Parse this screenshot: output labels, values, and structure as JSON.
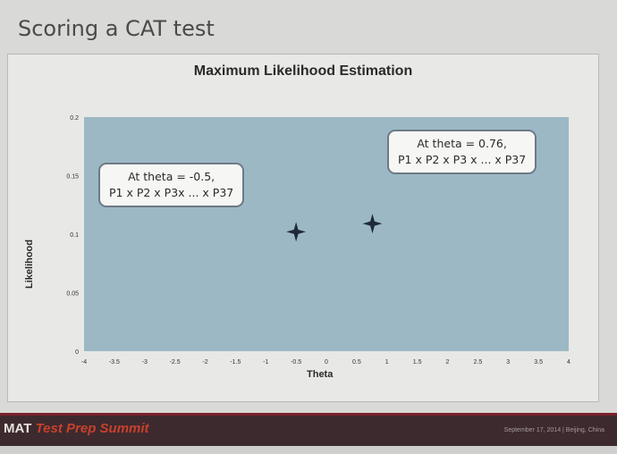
{
  "slide": {
    "title": "Scoring a CAT test"
  },
  "chart_data": {
    "type": "scatter",
    "title": "Maximum Likelihood Estimation",
    "xlabel": "Theta",
    "ylabel": "Likelihood",
    "xlim": [
      -4,
      4
    ],
    "ylim": [
      0,
      0.2
    ],
    "x_ticks": [
      "-4",
      "-3.5",
      "-3",
      "-2.5",
      "-2",
      "-1.5",
      "-1",
      "-0.5",
      "0",
      "0.5",
      "1",
      "1.5",
      "2",
      "2.5",
      "3",
      "3.5",
      "4"
    ],
    "y_ticks": [
      "0",
      "0.05",
      "0.1",
      "0.15",
      "0.2"
    ],
    "points": [
      {
        "x": -0.5,
        "y": 0.102
      },
      {
        "x": 0.76,
        "y": 0.109
      }
    ],
    "annotations": [
      {
        "line1": "At theta = -0.5,",
        "line2": "P1 x P2 x P3x ... x P37"
      },
      {
        "line1": "At theta = 0.76,",
        "line2": "P1 x P2 x P3 x ... x P37"
      }
    ],
    "colors": {
      "plot_bg": "#9db8c5",
      "marker": "#1f2a3a"
    }
  },
  "footer": {
    "brand": "MAT",
    "event": "Test Prep Summit",
    "right_text": "September 17, 2014 | Beijing, China"
  }
}
